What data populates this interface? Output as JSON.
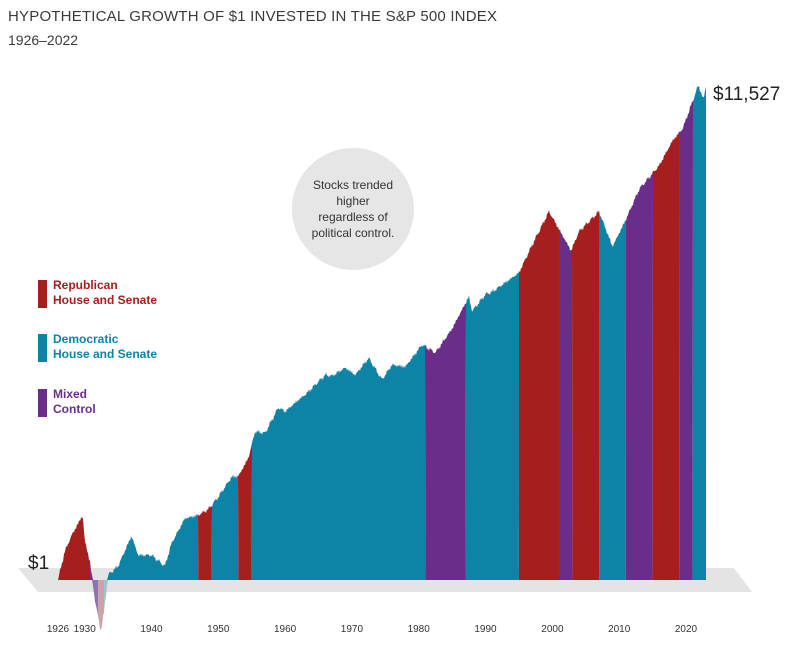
{
  "chart_data": {
    "type": "area",
    "title": "HYPOTHETICAL GROWTH OF $1 INVESTED IN THE S&P 500 INDEX",
    "subtitle": "1926–2022",
    "xlabel": "",
    "ylabel": "",
    "y_scale": "log",
    "ylim": [
      0.1,
      12000
    ],
    "xlim": [
      1926,
      2023
    ],
    "start_value_label": "$1",
    "end_value_label": "$11,527",
    "callout_text": "Stocks trended higher regardless of political control.",
    "x_ticks": [
      {
        "year": 1926,
        "label": "1926"
      },
      {
        "year": 1930,
        "label": "1930"
      },
      {
        "year": 1940,
        "label": "1940"
      },
      {
        "year": 1950,
        "label": "1950"
      },
      {
        "year": 1960,
        "label": "1960"
      },
      {
        "year": 1970,
        "label": "1970"
      },
      {
        "year": 1980,
        "label": "1980"
      },
      {
        "year": 1990,
        "label": "1990"
      },
      {
        "year": 2000,
        "label": "2000"
      },
      {
        "year": 2010,
        "label": "2010"
      },
      {
        "year": 2020,
        "label": "2020"
      }
    ],
    "series": [
      {
        "name": "Growth of $1",
        "points": [
          [
            1926.0,
            1.0
          ],
          [
            1927.0,
            1.7
          ],
          [
            1928.0,
            2.3
          ],
          [
            1929.0,
            2.9
          ],
          [
            1929.7,
            3.4
          ],
          [
            1930.0,
            2.1
          ],
          [
            1930.8,
            1.4
          ],
          [
            1931.5,
            0.7
          ],
          [
            1932.4,
            0.38
          ],
          [
            1932.9,
            0.55
          ],
          [
            1933.5,
            1.1
          ],
          [
            1935.0,
            1.3
          ],
          [
            1937.0,
            2.3
          ],
          [
            1938.0,
            1.6
          ],
          [
            1940.0,
            1.6
          ],
          [
            1942.0,
            1.3
          ],
          [
            1943.0,
            2.0
          ],
          [
            1945.0,
            3.2
          ],
          [
            1947.0,
            3.4
          ],
          [
            1948.5,
            3.8
          ],
          [
            1950.0,
            4.8
          ],
          [
            1952.0,
            7.0
          ],
          [
            1953.0,
            7.1
          ],
          [
            1954.5,
            10.0
          ],
          [
            1955.5,
            16.5
          ],
          [
            1957.0,
            16.0
          ],
          [
            1959.0,
            26.0
          ],
          [
            1960.0,
            24.0
          ],
          [
            1962.0,
            30.0
          ],
          [
            1963.0,
            33.0
          ],
          [
            1966.0,
            48.0
          ],
          [
            1967.0,
            47.0
          ],
          [
            1969.0,
            55.0
          ],
          [
            1970.5,
            48.0
          ],
          [
            1972.5,
            66.0
          ],
          [
            1974.5,
            44.0
          ],
          [
            1976.0,
            58.0
          ],
          [
            1978.0,
            56.0
          ],
          [
            1980.5,
            85.0
          ],
          [
            1982.5,
            73.0
          ],
          [
            1985.0,
            115.0
          ],
          [
            1987.5,
            210.0
          ],
          [
            1988.0,
            160.0
          ],
          [
            1990.0,
            220.0
          ],
          [
            1991.0,
            230.0
          ],
          [
            1995.0,
            330.0
          ],
          [
            1997.0,
            560.0
          ],
          [
            1999.5,
            1050.0
          ],
          [
            2002.8,
            500.0
          ],
          [
            2004.0,
            720.0
          ],
          [
            2007.0,
            1050.0
          ],
          [
            2009.0,
            540.0
          ],
          [
            2011.0,
            900.0
          ],
          [
            2013.0,
            1600.0
          ],
          [
            2016.0,
            2500.0
          ],
          [
            2018.0,
            4000.0
          ],
          [
            2019.5,
            5000.0
          ],
          [
            2021.9,
            11500.0
          ],
          [
            2022.6,
            8500.0
          ],
          [
            2023.0,
            11527.0
          ]
        ]
      }
    ],
    "control_periods": [
      {
        "start": 1926.0,
        "end": 1930.8,
        "control": "republican"
      },
      {
        "start": 1930.8,
        "end": 1932.0,
        "control": "mixed"
      },
      {
        "start": 1932.0,
        "end": 1932.9,
        "control": "republican"
      },
      {
        "start": 1932.9,
        "end": 1947.0,
        "control": "democratic"
      },
      {
        "start": 1947.0,
        "end": 1949.0,
        "control": "republican"
      },
      {
        "start": 1949.0,
        "end": 1953.0,
        "control": "democratic"
      },
      {
        "start": 1953.0,
        "end": 1955.0,
        "control": "republican"
      },
      {
        "start": 1955.0,
        "end": 1981.0,
        "control": "democratic"
      },
      {
        "start": 1981.0,
        "end": 1987.0,
        "control": "mixed"
      },
      {
        "start": 1987.0,
        "end": 1995.0,
        "control": "democratic"
      },
      {
        "start": 1995.0,
        "end": 2001.0,
        "control": "republican"
      },
      {
        "start": 2001.0,
        "end": 2003.0,
        "control": "mixed"
      },
      {
        "start": 2003.0,
        "end": 2007.0,
        "control": "republican"
      },
      {
        "start": 2007.0,
        "end": 2011.0,
        "control": "democratic"
      },
      {
        "start": 2011.0,
        "end": 2015.0,
        "control": "mixed"
      },
      {
        "start": 2015.0,
        "end": 2019.0,
        "control": "republican"
      },
      {
        "start": 2019.0,
        "end": 2021.0,
        "control": "mixed"
      },
      {
        "start": 2021.0,
        "end": 2023.0,
        "control": "democratic"
      }
    ],
    "legend": [
      {
        "key": "republican",
        "label": "Republican\nHouse and Senate",
        "color": "#a61e1e"
      },
      {
        "key": "democratic",
        "label": "Democratic\nHouse and Senate",
        "color": "#0d84a6"
      },
      {
        "key": "mixed",
        "label": "Mixed\nControl",
        "color": "#6b2d8a"
      }
    ],
    "below_one_colors": {
      "republican": "#c9a3a8",
      "mixed": "#8e73b0",
      "democratic": "#9cc3d4"
    },
    "floor_color": "#e4e4e4"
  }
}
